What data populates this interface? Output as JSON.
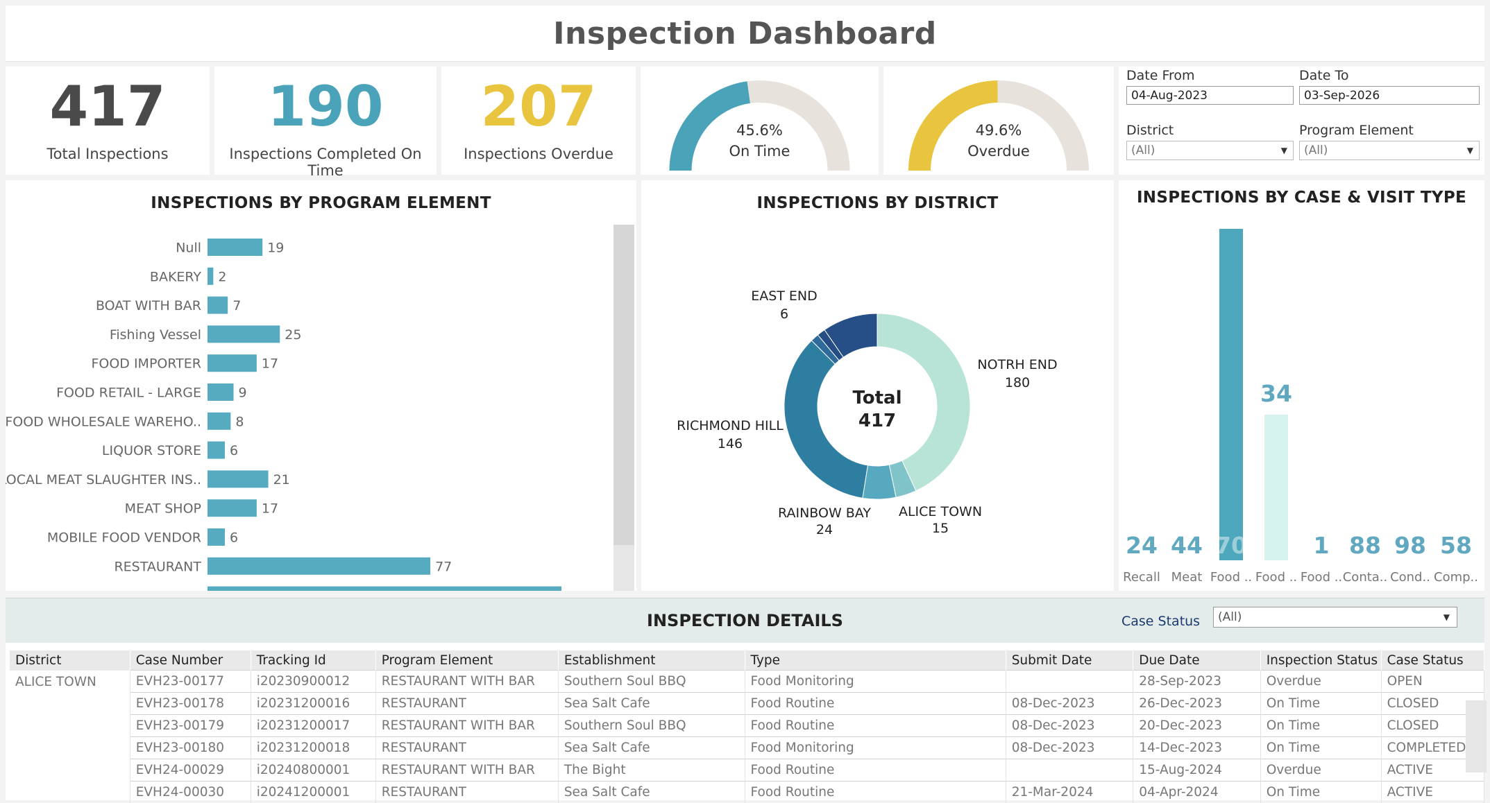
{
  "title": "Inspection Dashboard",
  "kpis": {
    "total": {
      "value": "417",
      "label": "Total Inspections",
      "color": "#4a4a4a"
    },
    "on_time": {
      "value": "190",
      "label": "Inspections Completed On Time",
      "color": "#4aa3b8"
    },
    "overdue": {
      "value": "207",
      "label": "Inspections Overdue",
      "color": "#e9c53f"
    }
  },
  "gauges": [
    {
      "pct_text": "45.6%",
      "label": "On Time",
      "fraction": 0.456,
      "color": "#4aa3b8",
      "track": "#e8e2dc"
    },
    {
      "pct_text": "49.6%",
      "label": "Overdue",
      "fraction": 0.496,
      "color": "#e9c53f",
      "track": "#e8e2dc"
    }
  ],
  "filters": {
    "date_from_label": "Date From",
    "date_from": "04-Aug-2023",
    "date_to_label": "Date To",
    "date_to": "03-Sep-2026",
    "district_label": "District",
    "district": "(All)",
    "program_label": "Program Element",
    "program": "(All)"
  },
  "program_chart": {
    "title": "INSPECTIONS BY PROGRAM ELEMENT",
    "chart_data": {
      "type": "bar",
      "orientation": "horizontal",
      "categories": [
        "Null",
        "BAKERY",
        "BOAT WITH BAR",
        "Fishing Vessel",
        "FOOD IMPORTER",
        "FOOD RETAIL - LARGE",
        "FOOD WHOLESALE WAREHO..",
        "LIQUOR STORE",
        "LOCAL MEAT SLAUGHTER INS..",
        "MEAT SHOP",
        "MOBILE FOOD VENDOR",
        "RESTAURANT"
      ],
      "values": [
        19,
        2,
        7,
        25,
        17,
        9,
        8,
        6,
        21,
        17,
        6,
        77
      ],
      "value_labels": [
        "19",
        "2",
        "7",
        "25",
        "17",
        "9",
        "8",
        "6",
        "21",
        "17",
        "6",
        "77"
      ],
      "bar_color": "#56abc0"
    }
  },
  "district_chart": {
    "title": "INSPECTIONS BY DISTRICT",
    "center_label": "Total",
    "center_value": "417",
    "chart_data": {
      "type": "pie",
      "donut": true,
      "slices": [
        {
          "label": "NOTRH END",
          "value": 180,
          "value_text": "180",
          "color": "#b8e3d7"
        },
        {
          "label": "ALICE TOWN",
          "value": 15,
          "value_text": "15",
          "color": "#80c3c9"
        },
        {
          "label": "RAINBOW BAY",
          "value": 24,
          "value_text": "24",
          "color": "#57a9c0"
        },
        {
          "label": "RICHMOND HILL",
          "value": 146,
          "value_text": "146",
          "color": "#2d7ea1"
        },
        {
          "label": "",
          "value": 6,
          "value_text": "",
          "color": "#2f6a9a"
        },
        {
          "label": "EAST END",
          "value": 6,
          "value_text": "6",
          "color": "#244e83"
        },
        {
          "label": "",
          "value": 40,
          "value_text": "",
          "color": "#274f87"
        }
      ]
    }
  },
  "visit_chart": {
    "title": "INSPECTIONS BY CASE & VISIT TYPE",
    "chart_data": {
      "type": "bar",
      "categories": [
        "Recall",
        "Meat",
        "Food ..",
        "Food ..",
        "Food ..",
        "Conta..",
        "Cond..",
        "Comp.."
      ],
      "values": [
        24,
        44,
        70,
        34,
        1,
        88,
        98,
        58
      ],
      "value_labels": [
        "24",
        "44",
        "70",
        "34",
        "1",
        "88",
        "98",
        "58"
      ],
      "label_color": "#5fa8c0"
    }
  },
  "details": {
    "title": "INSPECTION DETAILS",
    "case_status_label": "Case Status",
    "case_status": "(All)",
    "columns": [
      "District",
      "Case Number",
      "Tracking Id",
      "Program Element",
      "Establishment",
      "Type",
      "Submit Date",
      "Due Date",
      "Inspection Status",
      "Case Status"
    ],
    "district": "ALICE TOWN",
    "rows": [
      [
        "EVH23-00177",
        "i20230900012",
        "RESTAURANT WITH BAR",
        "Southern Soul BBQ",
        "Food Monitoring",
        "",
        "28-Sep-2023",
        "Overdue",
        "OPEN"
      ],
      [
        "EVH23-00178",
        "i20231200016",
        "RESTAURANT",
        "Sea Salt Cafe",
        "Food Routine",
        "08-Dec-2023",
        "26-Dec-2023",
        "On Time",
        "CLOSED"
      ],
      [
        "EVH23-00179",
        "i20231200017",
        "RESTAURANT WITH BAR",
        "Southern Soul BBQ",
        "Food Routine",
        "08-Dec-2023",
        "20-Dec-2023",
        "On Time",
        "CLOSED"
      ],
      [
        "EVH23-00180",
        "i20231200018",
        "RESTAURANT",
        "Sea Salt Cafe",
        "Food Monitoring",
        "08-Dec-2023",
        "14-Dec-2023",
        "On Time",
        "COMPLETED"
      ],
      [
        "EVH24-00029",
        "i20240800001",
        "RESTAURANT WITH BAR",
        "The Bight",
        "Food Routine",
        "",
        "15-Aug-2024",
        "Overdue",
        "ACTIVE"
      ],
      [
        "EVH24-00030",
        "i20241200001",
        "RESTAURANT",
        "Sea Salt Cafe",
        "Food Routine",
        "21-Mar-2024",
        "04-Apr-2024",
        "On Time",
        "ACTIVE"
      ]
    ]
  }
}
